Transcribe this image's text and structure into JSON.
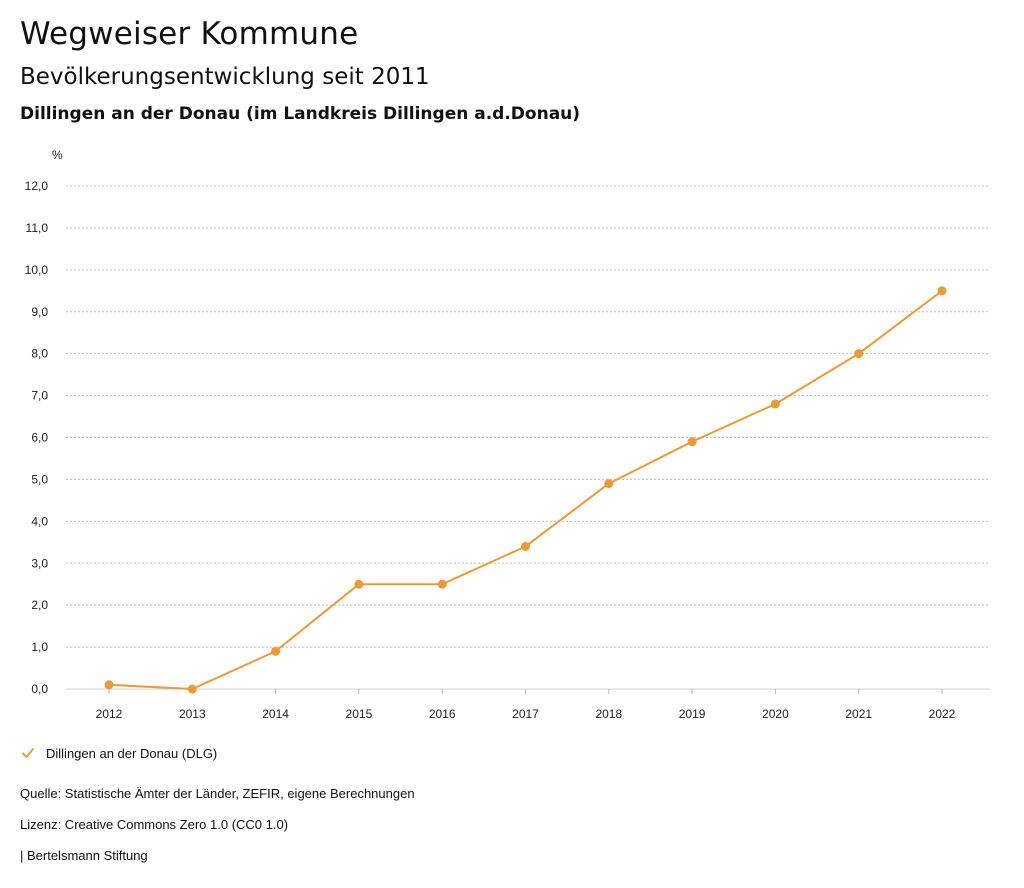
{
  "header": {
    "title": "Wegweiser Kommune",
    "subtitle": "Bevölkerungsentwicklung seit 2011",
    "region": "Dillingen an der Donau (im Landkreis Dillingen a.d.Donau)"
  },
  "chart_data": {
    "type": "line",
    "title": "",
    "ylabel": "%",
    "xlabel": "",
    "x": [
      "2012",
      "2013",
      "2014",
      "2015",
      "2016",
      "2017",
      "2018",
      "2019",
      "2020",
      "2021",
      "2022"
    ],
    "ylim": [
      0,
      12
    ],
    "yticks": [
      0,
      1,
      2,
      3,
      4,
      5,
      6,
      7,
      8,
      9,
      10,
      11,
      12
    ],
    "ytick_labels": [
      "0,0",
      "1,0",
      "2,0",
      "3,0",
      "4,0",
      "5,0",
      "6,0",
      "7,0",
      "8,0",
      "9,0",
      "10,0",
      "11,0",
      "12,0"
    ],
    "grid": true,
    "legend_position": "bottom-left",
    "series": [
      {
        "name": "Dillingen an der Donau (DLG)",
        "color": "#ec9a35",
        "values": [
          0.1,
          0.0,
          0.9,
          2.5,
          2.5,
          3.4,
          4.9,
          5.9,
          6.8,
          8.0,
          9.5
        ]
      }
    ]
  },
  "legend": {
    "label": "Dillingen an der Donau (DLG)",
    "icon": "check-icon"
  },
  "footer": {
    "source": "Quelle: Statistische Ämter der Länder, ZEFIR, eigene Berechnungen",
    "license": "Lizenz: Creative Commons Zero 1.0 (CC0 1.0)",
    "publisher": "| Bertelsmann Stiftung"
  },
  "colors": {
    "series": "#ec9a35",
    "grid": "#bfbfbf",
    "text": "#111111"
  }
}
